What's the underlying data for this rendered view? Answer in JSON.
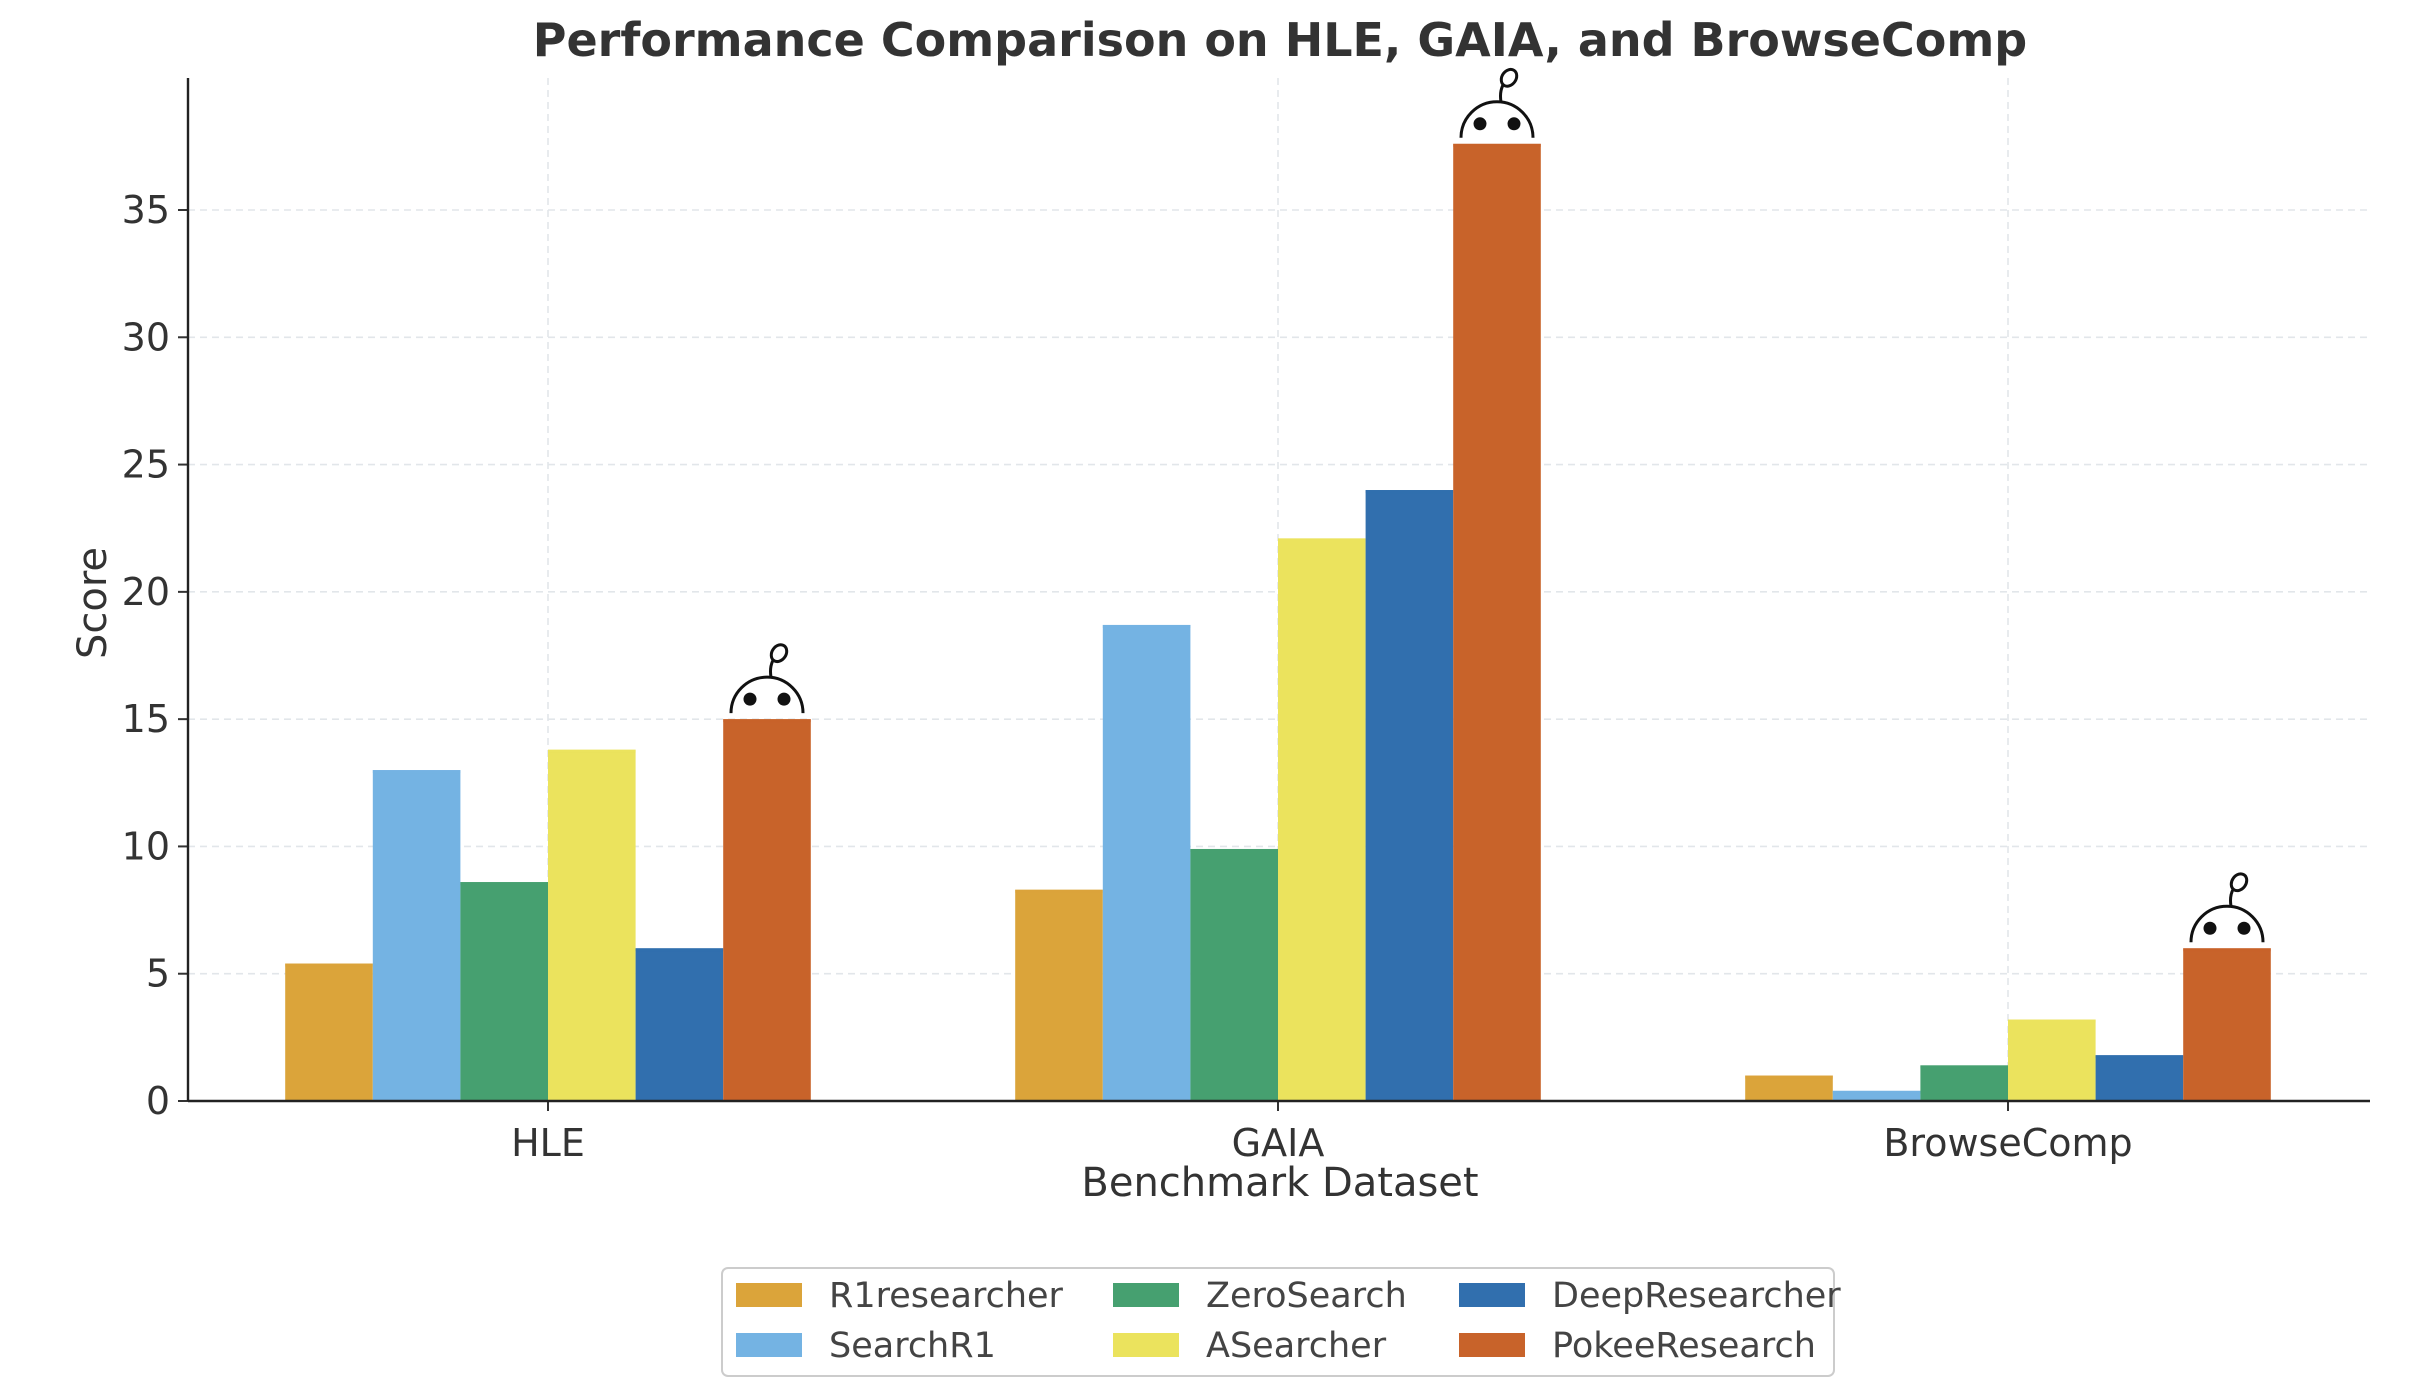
{
  "chart_data": {
    "type": "bar",
    "title": "Performance Comparison on HLE, GAIA, and BrowseComp",
    "xlabel": "Benchmark Dataset",
    "ylabel": "Score",
    "ylim": [
      0,
      40
    ],
    "yticks": [
      0,
      5,
      10,
      15,
      20,
      25,
      30,
      35
    ],
    "grid": true,
    "legend_position": "bottom-center",
    "categories": [
      "HLE",
      "GAIA",
      "BrowseComp"
    ],
    "series": [
      {
        "name": "R1researcher",
        "color": "#dba43a",
        "values": [
          5.4,
          8.3,
          1.0
        ]
      },
      {
        "name": "SearchR1",
        "color": "#74b3e3",
        "values": [
          13.0,
          18.7,
          0.4
        ]
      },
      {
        "name": "ZeroSearch",
        "color": "#46a070",
        "values": [
          8.6,
          9.9,
          1.4
        ]
      },
      {
        "name": "ASearcher",
        "color": "#ebe35d",
        "values": [
          13.8,
          22.1,
          3.2
        ]
      },
      {
        "name": "DeepResearcher",
        "color": "#316fae",
        "values": [
          6.0,
          24.0,
          1.8
        ]
      },
      {
        "name": "PokeeResearch",
        "color": "#c8632a",
        "values": [
          15.0,
          37.6,
          6.0
        ]
      }
    ],
    "highlight_series": "PokeeResearch",
    "highlight_icon": "pokee-mascot-icon"
  }
}
